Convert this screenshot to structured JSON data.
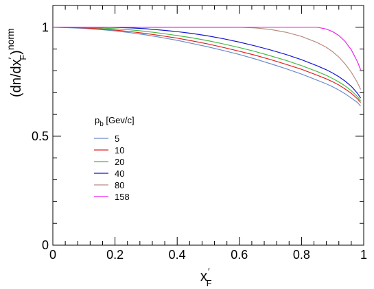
{
  "chart_data": {
    "type": "line",
    "xlim": [
      0,
      1
    ],
    "ylim": [
      0,
      1.1
    ],
    "x_ticks": [
      "0",
      "0.2",
      "0.4",
      "0.6",
      "0.8",
      "1"
    ],
    "y_ticks": [
      "0",
      "0.5",
      "1"
    ],
    "xlabel": {
      "main": "x",
      "prime": "′",
      "sub": "F"
    },
    "ylabel": {
      "open": "(dn/dx",
      "prime": "′",
      "sub": "F",
      "close": ")",
      "sup": "norm"
    },
    "legend": {
      "title_main": "p",
      "title_sub": "b",
      "title_rest": " [Gev/c]",
      "placement": "center-left"
    },
    "x": [
      0,
      0.05,
      0.1,
      0.15,
      0.2,
      0.25,
      0.3,
      0.35,
      0.4,
      0.45,
      0.5,
      0.55,
      0.6,
      0.65,
      0.7,
      0.75,
      0.8,
      0.85,
      0.88,
      0.9,
      0.92,
      0.94,
      0.96,
      0.98,
      0.99
    ],
    "series": [
      {
        "name": "5",
        "color": "#6a8ccc",
        "values": [
          1.0,
          0.998,
          0.995,
          0.99,
          0.983,
          0.975,
          0.965,
          0.953,
          0.94,
          0.925,
          0.91,
          0.893,
          0.875,
          0.855,
          0.833,
          0.81,
          0.785,
          0.757,
          0.74,
          0.727,
          0.712,
          0.695,
          0.675,
          0.655,
          0.638
        ]
      },
      {
        "name": "10",
        "color": "#dd2222",
        "values": [
          1.0,
          0.999,
          0.997,
          0.993,
          0.987,
          0.98,
          0.971,
          0.961,
          0.95,
          0.937,
          0.923,
          0.907,
          0.89,
          0.872,
          0.852,
          0.83,
          0.807,
          0.78,
          0.763,
          0.75,
          0.735,
          0.717,
          0.697,
          0.672,
          0.655
        ]
      },
      {
        "name": "20",
        "color": "#44bb44",
        "values": [
          1.0,
          1.0,
          0.999,
          0.997,
          0.993,
          0.988,
          0.981,
          0.972,
          0.962,
          0.951,
          0.938,
          0.923,
          0.907,
          0.889,
          0.869,
          0.848,
          0.824,
          0.797,
          0.779,
          0.765,
          0.749,
          0.731,
          0.709,
          0.682,
          0.663
        ]
      },
      {
        "name": "40",
        "color": "#1414d0",
        "values": [
          1.0,
          1.0,
          1.0,
          1.0,
          0.999,
          0.997,
          0.993,
          0.987,
          0.98,
          0.971,
          0.96,
          0.947,
          0.932,
          0.915,
          0.896,
          0.875,
          0.851,
          0.823,
          0.805,
          0.79,
          0.773,
          0.753,
          0.729,
          0.697,
          0.675
        ]
      },
      {
        "name": "80",
        "color": "#b98a82",
        "values": [
          1.0,
          1.0,
          1.0,
          1.0,
          1.0,
          1.0,
          1.0,
          1.0,
          1.0,
          1.0,
          1.0,
          1.0,
          1.0,
          0.997,
          0.99,
          0.977,
          0.958,
          0.93,
          0.908,
          0.888,
          0.863,
          0.832,
          0.794,
          0.746,
          0.715
        ]
      },
      {
        "name": "158",
        "color": "#ee22ee",
        "values": [
          1.0,
          1.0,
          1.0,
          1.0,
          1.0,
          1.0,
          1.0,
          1.0,
          1.0,
          1.0,
          1.0,
          1.0,
          1.0,
          1.0,
          1.0,
          1.0,
          1.0,
          1.0,
          0.992,
          0.98,
          0.962,
          0.935,
          0.897,
          0.842,
          0.805
        ]
      }
    ]
  }
}
